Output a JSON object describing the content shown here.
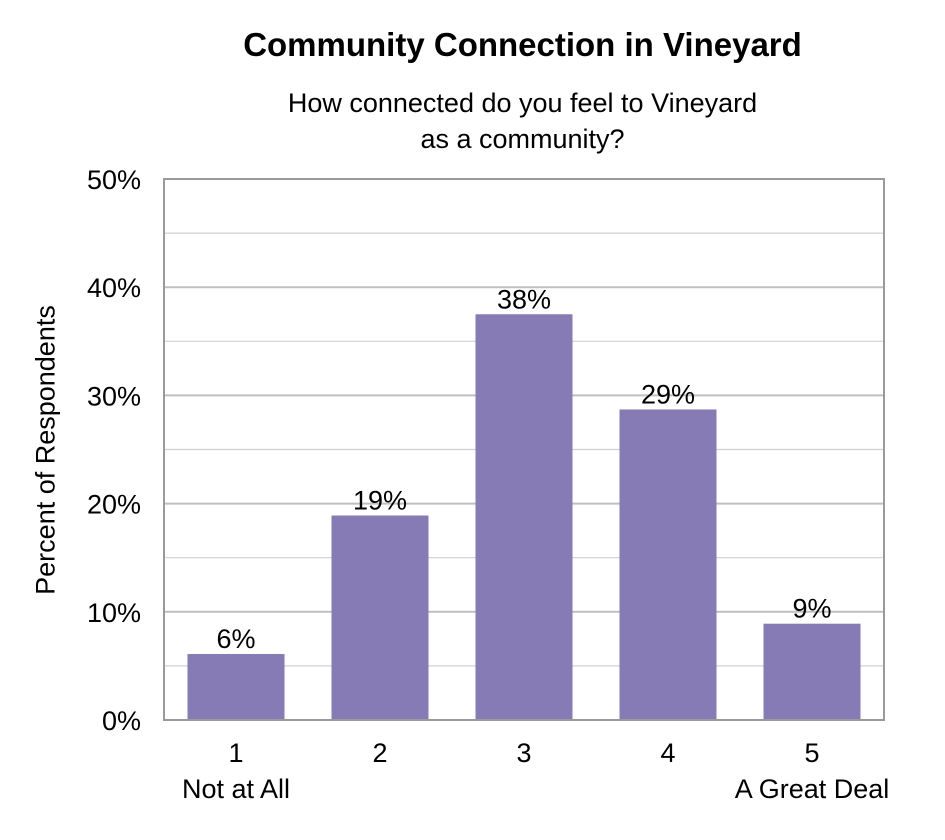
{
  "chart_data": {
    "type": "bar",
    "title": "Community Connection in Vineyard",
    "subtitle": [
      "How connected do you feel to Vineyard",
      "as a community?"
    ],
    "ylabel": "Percent of Respondents",
    "xlabel": "",
    "categories": [
      "1",
      "2",
      "3",
      "4",
      "5"
    ],
    "category_sublabels": [
      "Not at All",
      "",
      "",
      "",
      "A Great Deal"
    ],
    "values": [
      6,
      19,
      38,
      29,
      9
    ],
    "plot_values": [
      6.1,
      18.9,
      37.5,
      28.7,
      8.9
    ],
    "data_labels": [
      "6%",
      "19%",
      "38%",
      "29%",
      "9%"
    ],
    "ylim": [
      0,
      50
    ],
    "yticks": [
      0,
      10,
      20,
      30,
      40,
      50
    ],
    "ytick_labels": [
      "0%",
      "10%",
      "20%",
      "30%",
      "40%",
      "50%"
    ],
    "grid": true,
    "legend": "none",
    "colors": {
      "bar": "#877BB6",
      "grid": "#bfbfbf",
      "axis": "#9a9a9a"
    }
  }
}
